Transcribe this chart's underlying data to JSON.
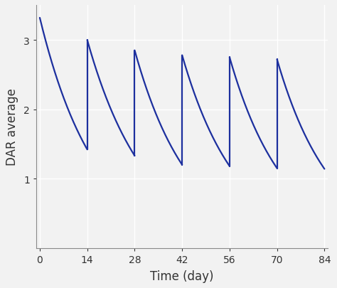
{
  "line_color": "#1c2f9e",
  "background_color": "#f2f2f2",
  "grid_color": "#ffffff",
  "xlabel": "Time (day)",
  "ylabel": "DAR average",
  "xlim": [
    -1,
    85
  ],
  "ylim": [
    0,
    3.5
  ],
  "xticks": [
    0,
    14,
    28,
    42,
    56,
    70,
    84
  ],
  "yticks": [
    1,
    2,
    3
  ],
  "dose_interval": 14,
  "num_doses": 6,
  "initial_dar": 3.32,
  "peaks": [
    3.32,
    3.0,
    2.85,
    2.78,
    2.75,
    2.72
  ],
  "troughs": [
    1.42,
    1.33,
    1.2,
    1.18,
    1.15,
    1.14,
    1.14
  ],
  "line_width": 1.6,
  "tick_labelsize": 10,
  "label_fontsize": 12
}
